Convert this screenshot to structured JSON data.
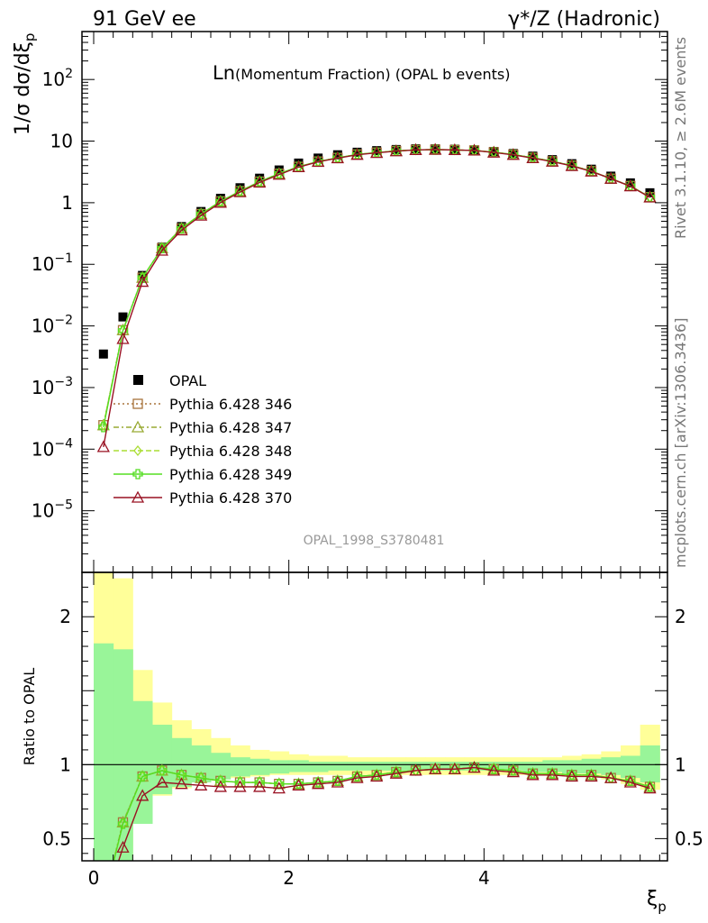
{
  "header": {
    "left": "91 GeV ee",
    "right": "γ*/Z (Hadronic)"
  },
  "side": {
    "rivet": "Rivet 3.1.10, ≥ 2.6M events",
    "mcplots": "mcplots.cern.ch [arXiv:1306.3436]"
  },
  "chart_data": {
    "type": "scatter",
    "title_main": "Ln",
    "title_sub": "(Momentum Fraction) (OPAL b events)",
    "watermark": "OPAL_1998_S3780481",
    "xlabel": "ξ",
    "xlabel_sub": "p",
    "ylabel": "1/σ dσ/dξ",
    "ylabel_sub": "p",
    "ratio_ylabel": "Ratio to OPAL",
    "xlim": [
      -0.12,
      5.88
    ],
    "ylim": [
      1e-06,
      600
    ],
    "yscale": "log",
    "ratio_ylim": [
      0.35,
      2.3
    ],
    "x_ticks": [
      0,
      2,
      4
    ],
    "x_tick_labels": [
      "0",
      "2",
      "4"
    ],
    "y_ticks": [
      {
        "value": 100,
        "mant": "10",
        "exp": "2"
      },
      {
        "value": 10,
        "mant": "10",
        "exp": ""
      },
      {
        "value": 1,
        "mant": "1",
        "exp": ""
      },
      {
        "value": 0.1,
        "mant": "10",
        "exp": "−1"
      },
      {
        "value": 0.01,
        "mant": "10",
        "exp": "−2"
      },
      {
        "value": 0.001,
        "mant": "10",
        "exp": "−3"
      },
      {
        "value": 0.0001,
        "mant": "10",
        "exp": "−4"
      },
      {
        "value": 1e-05,
        "mant": "10",
        "exp": "−5"
      }
    ],
    "ratio_ticks": [
      {
        "value": 2,
        "label": "2"
      },
      {
        "value": 1,
        "label": "1"
      },
      {
        "value": 0.5,
        "label": "0.5"
      }
    ],
    "x": [
      0.1,
      0.3,
      0.5,
      0.7,
      0.9,
      1.1,
      1.3,
      1.5,
      1.7,
      1.9,
      2.1,
      2.3,
      2.5,
      2.7,
      2.9,
      3.1,
      3.3,
      3.5,
      3.7,
      3.9,
      4.1,
      4.3,
      4.5,
      4.7,
      4.9,
      5.1,
      5.3,
      5.5,
      5.7
    ],
    "data": {
      "name": "OPAL",
      "color": "#000000",
      "values": [
        0.0035,
        0.014,
        0.066,
        0.19,
        0.41,
        0.72,
        1.18,
        1.75,
        2.5,
        3.4,
        4.4,
        5.3,
        6.0,
        6.6,
        7.0,
        7.3,
        7.5,
        7.5,
        7.4,
        7.2,
        6.8,
        6.3,
        5.7,
        5.0,
        4.3,
        3.5,
        2.7,
        2.1,
        1.45
      ]
    },
    "series": [
      {
        "name": "Pythia 6.428 346",
        "color": "#a8743c",
        "marker": "square-open",
        "dash": "2,3",
        "ratio": [
          0.07,
          0.61,
          0.92,
          0.96,
          0.93,
          0.91,
          0.89,
          0.88,
          0.88,
          0.87,
          0.87,
          0.88,
          0.89,
          0.92,
          0.93,
          0.95,
          0.96,
          0.97,
          0.97,
          0.98,
          0.97,
          0.96,
          0.94,
          0.94,
          0.93,
          0.93,
          0.91,
          0.89,
          0.85
        ]
      },
      {
        "name": "Pythia 6.428 347",
        "color": "#99aa33",
        "marker": "triangle-open",
        "dash": "6,3,2,3",
        "ratio": [
          0.07,
          0.61,
          0.92,
          0.96,
          0.93,
          0.91,
          0.89,
          0.88,
          0.88,
          0.87,
          0.87,
          0.88,
          0.89,
          0.92,
          0.93,
          0.95,
          0.96,
          0.97,
          0.97,
          0.98,
          0.97,
          0.96,
          0.94,
          0.94,
          0.93,
          0.93,
          0.91,
          0.89,
          0.85
        ]
      },
      {
        "name": "Pythia 6.428 348",
        "color": "#aadd33",
        "marker": "diamond-open",
        "dash": "6,3",
        "ratio": [
          0.07,
          0.6,
          0.92,
          0.96,
          0.93,
          0.91,
          0.89,
          0.88,
          0.88,
          0.87,
          0.87,
          0.88,
          0.89,
          0.92,
          0.93,
          0.95,
          0.96,
          0.97,
          0.97,
          0.98,
          0.97,
          0.96,
          0.94,
          0.94,
          0.93,
          0.93,
          0.91,
          0.89,
          0.85
        ]
      },
      {
        "name": "Pythia 6.428 349",
        "color": "#55dd22",
        "marker": "cross-open",
        "dash": "",
        "ratio": [
          0.065,
          0.6,
          0.92,
          0.96,
          0.93,
          0.91,
          0.89,
          0.88,
          0.88,
          0.87,
          0.87,
          0.88,
          0.89,
          0.92,
          0.93,
          0.95,
          0.96,
          0.97,
          0.97,
          0.98,
          0.97,
          0.96,
          0.94,
          0.94,
          0.93,
          0.93,
          0.91,
          0.89,
          0.85
        ]
      },
      {
        "name": "Pythia 6.428 370",
        "color": "#991122",
        "marker": "triangle-open",
        "dash": "",
        "ratio": [
          0.031,
          0.44,
          0.79,
          0.88,
          0.87,
          0.86,
          0.85,
          0.85,
          0.85,
          0.84,
          0.86,
          0.87,
          0.88,
          0.91,
          0.92,
          0.94,
          0.96,
          0.97,
          0.97,
          0.98,
          0.96,
          0.95,
          0.93,
          0.93,
          0.92,
          0.92,
          0.91,
          0.88,
          0.84
        ]
      }
    ],
    "bands": {
      "bin_edges": [
        0.0,
        0.2,
        0.4,
        0.6,
        0.8,
        1.0,
        1.2,
        1.4,
        1.6,
        1.8,
        2.0,
        2.2,
        2.4,
        2.6,
        2.8,
        3.0,
        3.2,
        3.4,
        3.6,
        3.8,
        4.0,
        4.2,
        4.4,
        4.6,
        4.8,
        5.0,
        5.2,
        5.4,
        5.6,
        5.8
      ],
      "green_color": "#99f599",
      "yellow_color": "#ffff99",
      "green": [
        [
          0.0,
          1.82
        ],
        [
          0.0,
          1.78
        ],
        [
          0.6,
          1.43
        ],
        [
          0.8,
          1.27
        ],
        [
          0.85,
          1.18
        ],
        [
          0.88,
          1.13
        ],
        [
          0.9,
          1.08
        ],
        [
          0.92,
          1.05
        ],
        [
          0.93,
          1.04
        ],
        [
          0.94,
          1.03
        ],
        [
          0.95,
          1.03
        ],
        [
          0.95,
          1.02
        ],
        [
          0.96,
          1.02
        ],
        [
          0.96,
          1.02
        ],
        [
          0.96,
          1.02
        ],
        [
          0.96,
          1.02
        ],
        [
          0.96,
          1.02
        ],
        [
          0.96,
          1.02
        ],
        [
          0.96,
          1.02
        ],
        [
          0.96,
          1.02
        ],
        [
          0.96,
          1.02
        ],
        [
          0.96,
          1.02
        ],
        [
          0.95,
          1.02
        ],
        [
          0.95,
          1.03
        ],
        [
          0.94,
          1.03
        ],
        [
          0.94,
          1.04
        ],
        [
          0.93,
          1.05
        ],
        [
          0.91,
          1.06
        ],
        [
          0.88,
          1.13
        ]
      ],
      "yellow": [
        [
          0.0,
          2.3
        ],
        [
          0.0,
          2.26
        ],
        [
          0.68,
          1.64
        ],
        [
          0.79,
          1.42
        ],
        [
          0.84,
          1.3
        ],
        [
          0.88,
          1.24
        ],
        [
          0.9,
          1.18
        ],
        [
          0.91,
          1.13
        ],
        [
          0.92,
          1.1
        ],
        [
          0.93,
          1.09
        ],
        [
          0.93,
          1.07
        ],
        [
          0.93,
          1.06
        ],
        [
          0.93,
          1.06
        ],
        [
          0.93,
          1.05
        ],
        [
          0.93,
          1.05
        ],
        [
          0.93,
          1.05
        ],
        [
          0.93,
          1.05
        ],
        [
          0.93,
          1.05
        ],
        [
          0.93,
          1.05
        ],
        [
          0.93,
          1.05
        ],
        [
          0.93,
          1.05
        ],
        [
          0.93,
          1.05
        ],
        [
          0.93,
          1.05
        ],
        [
          0.93,
          1.05
        ],
        [
          0.92,
          1.06
        ],
        [
          0.92,
          1.07
        ],
        [
          0.9,
          1.09
        ],
        [
          0.87,
          1.13
        ],
        [
          0.83,
          1.27
        ]
      ]
    },
    "legend": "left, below the curves"
  }
}
